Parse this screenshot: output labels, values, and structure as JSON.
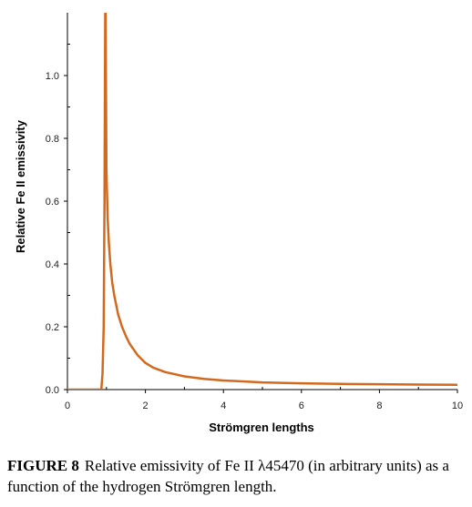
{
  "chart_data": {
    "type": "line",
    "xlabel": "Strömgren lengths",
    "ylabel": "Relative Fe II emissivity",
    "xlim": [
      0,
      10
    ],
    "ylim": [
      0,
      1.2
    ],
    "x_ticks": [
      0,
      2,
      4,
      6,
      8,
      10
    ],
    "x_tick_labels": [
      "0",
      "2",
      "4",
      "6",
      "8",
      "10"
    ],
    "y_ticks": [
      0.0,
      0.2,
      0.4,
      0.6,
      0.8,
      1.0
    ],
    "y_tick_labels": [
      "0.0",
      "0.2",
      "0.4",
      "0.6",
      "0.8",
      "1.0"
    ],
    "grid": false,
    "series": [
      {
        "color": "#d2691e",
        "x": [
          0.78,
          0.84,
          0.87,
          0.9,
          0.93,
          0.95,
          0.97,
          0.98,
          1.0,
          1.03,
          1.06,
          1.1,
          1.15,
          1.2,
          1.3,
          1.4,
          1.5,
          1.6,
          1.8,
          2.0,
          2.2,
          2.5,
          3.0,
          3.5,
          4.0,
          5.0,
          6.0,
          7.0,
          8.0,
          9.0,
          10.0
        ],
        "y": [
          0.0,
          0.0,
          0.0,
          0.05,
          0.2,
          0.6,
          1.2,
          1.2,
          0.7,
          0.55,
          0.47,
          0.4,
          0.34,
          0.3,
          0.24,
          0.2,
          0.17,
          0.145,
          0.11,
          0.085,
          0.07,
          0.056,
          0.042,
          0.034,
          0.029,
          0.023,
          0.02,
          0.018,
          0.017,
          0.016,
          0.015
        ]
      },
      {
        "color": "#d2691e",
        "x": [
          0.0,
          0.78
        ],
        "y": [
          0.0,
          0.0
        ]
      }
    ]
  },
  "caption": {
    "figure_number": "FIGURE 8",
    "text": "Relative emissivity of Fe II λ45470 (in arbitrary units) as a function of the hydrogen Strömgren length."
  }
}
